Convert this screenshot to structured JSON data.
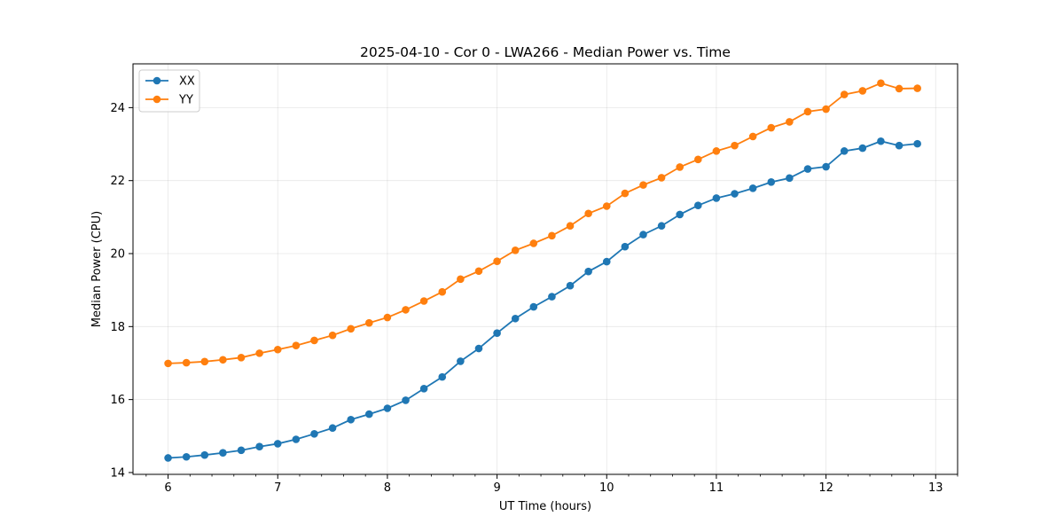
{
  "chart_data": {
    "type": "line",
    "title": "2025-04-10 - Cor 0 - LWA266 - Median Power vs. Time",
    "xlabel": "UT Time (hours)",
    "ylabel": "Median Power (CPU)",
    "xlim": [
      5.68,
      13.2
    ],
    "ylim": [
      13.95,
      25.2
    ],
    "xticks": [
      6,
      7,
      8,
      9,
      10,
      11,
      12,
      13
    ],
    "yticks": [
      14,
      16,
      18,
      20,
      22,
      24
    ],
    "grid": true,
    "legend_position": "top-left",
    "x": [
      6.0,
      6.1667,
      6.3333,
      6.5,
      6.6667,
      6.8333,
      7.0,
      7.1667,
      7.3333,
      7.5,
      7.6667,
      7.8333,
      8.0,
      8.1667,
      8.3333,
      8.5,
      8.6667,
      8.8333,
      9.0,
      9.1667,
      9.3333,
      9.5,
      9.6667,
      9.8333,
      10.0,
      10.1667,
      10.3333,
      10.5,
      10.6667,
      10.8333,
      11.0,
      11.1667,
      11.3333,
      11.5,
      11.6667,
      11.8333,
      12.0,
      12.1667,
      12.3333,
      12.5,
      12.6667,
      12.8333
    ],
    "series": [
      {
        "name": "XX",
        "color": "#1f77b4",
        "values": [
          14.4,
          14.43,
          14.48,
          14.54,
          14.61,
          14.71,
          14.79,
          14.91,
          15.06,
          15.22,
          15.45,
          15.6,
          15.76,
          15.98,
          16.3,
          16.62,
          17.05,
          17.4,
          17.82,
          18.22,
          18.54,
          18.82,
          19.12,
          19.51,
          19.78,
          20.19,
          20.52,
          20.76,
          21.07,
          21.32,
          21.52,
          21.64,
          21.79,
          21.96,
          22.07,
          22.32,
          22.38,
          22.81,
          22.89,
          23.08,
          22.96,
          23.01
        ]
      },
      {
        "name": "YY",
        "color": "#ff7f0e",
        "values": [
          16.99,
          17.01,
          17.04,
          17.09,
          17.15,
          17.27,
          17.37,
          17.48,
          17.62,
          17.76,
          17.94,
          18.1,
          18.25,
          18.46,
          18.7,
          18.95,
          19.3,
          19.52,
          19.79,
          20.09,
          20.28,
          20.49,
          20.76,
          21.1,
          21.3,
          21.65,
          21.88,
          22.08,
          22.37,
          22.58,
          22.81,
          22.96,
          23.21,
          23.45,
          23.61,
          23.89,
          23.96,
          24.36,
          24.46,
          24.67,
          24.52,
          24.53
        ]
      }
    ]
  }
}
